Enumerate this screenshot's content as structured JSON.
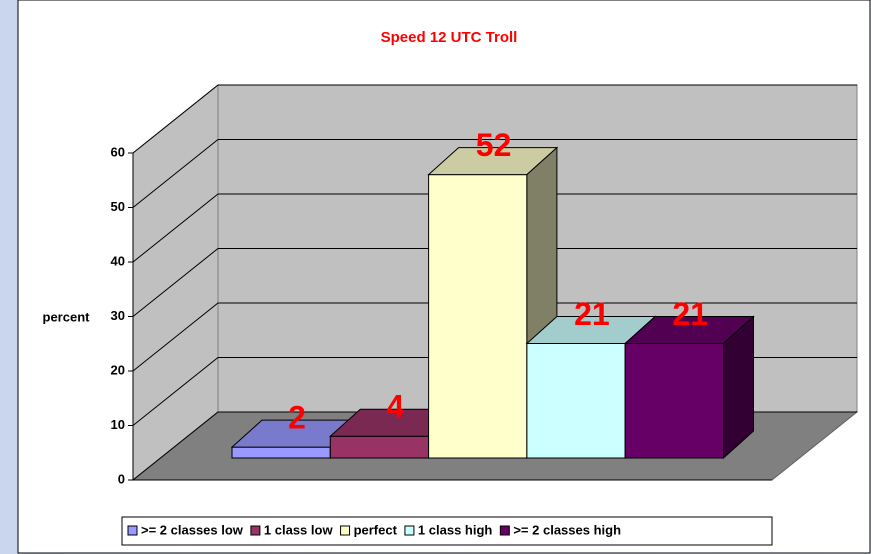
{
  "chart_data": {
    "type": "bar3d",
    "title": "Speed 12 UTC Troll",
    "y_label": "percent",
    "series": [
      {
        "name": ">= 2 classes low",
        "color": "#9999ff",
        "values": [
          2
        ]
      },
      {
        "name": "1 class low",
        "color": "#993366",
        "values": [
          4
        ]
      },
      {
        "name": "perfect",
        "color": "#ffffcc",
        "values": [
          52
        ]
      },
      {
        "name": "1 class high",
        "color": "#ccffff",
        "values": [
          21
        ]
      },
      {
        "name": ">= 2 classes high",
        "color": "#660066",
        "values": [
          21
        ]
      }
    ],
    "ylim": [
      0,
      60
    ],
    "yticks": [
      0,
      10,
      20,
      30,
      40,
      50,
      60
    ],
    "grid": true,
    "legend": "bottom"
  }
}
